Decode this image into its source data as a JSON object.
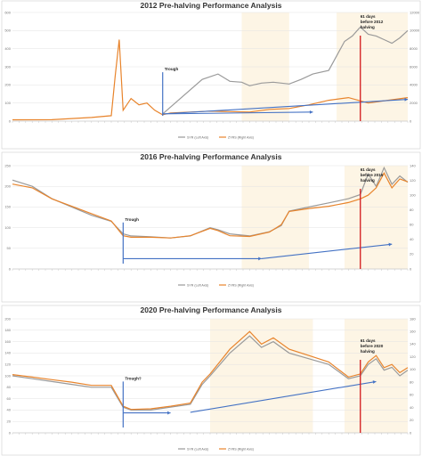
{
  "chart_data": [
    {
      "type": "line",
      "title": "2012 Pre-halving Performance Analysis",
      "ylim_left": [
        0,
        600
      ],
      "ylim_right": [
        0,
        12000
      ],
      "y_ticks_left": [
        "0",
        "100",
        "200",
        "300",
        "400",
        "500",
        "600"
      ],
      "y_ticks_right": [
        "0",
        "2000",
        "4000",
        "6000",
        "8000",
        "10000",
        "12000"
      ],
      "x_range": [
        0,
        100
      ],
      "legend": [
        "SYR (Left Axis)",
        "ZYRS (Right Axis)"
      ],
      "series": [
        {
          "name": "SYR (Left Axis)",
          "color": "#9a9a9a",
          "x": [
            38,
            48,
            52,
            55,
            58,
            60,
            63,
            66,
            70,
            73,
            76,
            80,
            82,
            84,
            86,
            88,
            90,
            92,
            94,
            96,
            98,
            100
          ],
          "values": [
            40,
            230,
            260,
            220,
            215,
            195,
            210,
            215,
            205,
            230,
            260,
            280,
            360,
            440,
            470,
            520,
            480,
            470,
            450,
            430,
            460,
            500
          ]
        },
        {
          "name": "ZYRS (Right Axis)",
          "color": "#e8842c",
          "x": [
            0,
            10,
            20,
            25,
            26,
            27,
            28,
            30,
            32,
            34,
            36,
            38,
            40,
            45,
            50,
            55,
            60,
            65,
            70,
            75,
            80,
            85,
            90,
            95,
            100
          ],
          "values": [
            150,
            160,
            400,
            600,
            5000,
            9000,
            1200,
            2500,
            1800,
            2000,
            1200,
            700,
            900,
            1000,
            1100,
            1050,
            1000,
            1300,
            1400,
            1800,
            2300,
            2600,
            2000,
            2300,
            2600
          ]
        }
      ],
      "annotations": [
        {
          "label": "Trough",
          "x": 38
        },
        {
          "label": "61 days before 2012 halving",
          "x": 88
        }
      ]
    },
    {
      "type": "line",
      "title": "2016 Pre-halving Performance Analysis",
      "ylim_left": [
        0,
        250
      ],
      "ylim_right": [
        0,
        140
      ],
      "y_ticks_left": [
        "0",
        "50",
        "100",
        "150",
        "200",
        "250"
      ],
      "y_ticks_right": [
        "0",
        "20",
        "40",
        "60",
        "80",
        "100",
        "120",
        "140"
      ],
      "x_range": [
        0,
        100
      ],
      "legend": [
        "SYR (Left Axis)",
        "ZYRS (Right Axis)"
      ],
      "series": [
        {
          "name": "SYR (Left Axis)",
          "color": "#9a9a9a",
          "x": [
            0,
            5,
            10,
            15,
            20,
            25,
            28,
            30,
            35,
            40,
            45,
            50,
            52,
            55,
            60,
            65,
            68,
            70,
            75,
            80,
            85,
            88,
            90,
            92,
            94,
            96,
            98,
            100
          ],
          "values": [
            215,
            200,
            170,
            150,
            130,
            115,
            85,
            80,
            78,
            75,
            80,
            100,
            95,
            85,
            80,
            90,
            105,
            140,
            150,
            160,
            170,
            180,
            230,
            200,
            245,
            205,
            225,
            210
          ]
        },
        {
          "name": "ZYRS (Right Axis)",
          "color": "#e8842c",
          "x": [
            0,
            5,
            10,
            15,
            20,
            25,
            28,
            30,
            35,
            40,
            45,
            50,
            52,
            55,
            60,
            65,
            68,
            70,
            75,
            80,
            85,
            88,
            90,
            92,
            94,
            96,
            98,
            100
          ],
          "values": [
            115,
            110,
            95,
            85,
            75,
            65,
            45,
            43,
            43,
            42,
            45,
            55,
            52,
            45,
            44,
            50,
            60,
            78,
            82,
            85,
            90,
            95,
            100,
            110,
            130,
            110,
            122,
            118
          ]
        }
      ],
      "annotations": [
        {
          "label": "Trough",
          "x": 28
        },
        {
          "label": "61 days before 2016 halving",
          "x": 88
        }
      ]
    },
    {
      "type": "line",
      "title": "2020 Pre-halving Performance Analysis",
      "ylim_left": [
        0,
        200
      ],
      "ylim_right": [
        0,
        180
      ],
      "y_ticks_left": [
        "0",
        "20",
        "40",
        "60",
        "80",
        "100",
        "120",
        "140",
        "160",
        "180",
        "200"
      ],
      "y_ticks_right": [
        "0",
        "20",
        "40",
        "60",
        "80",
        "100",
        "120",
        "140",
        "160",
        "180"
      ],
      "x_range": [
        0,
        100
      ],
      "legend": [
        "SYR (Left Axis)",
        "ZYRS (Right Axis)"
      ],
      "series": [
        {
          "name": "SYR (Left Axis)",
          "color": "#9a9a9a",
          "x": [
            0,
            5,
            10,
            15,
            20,
            25,
            28,
            30,
            35,
            40,
            45,
            48,
            50,
            55,
            60,
            63,
            66,
            70,
            75,
            80,
            85,
            88,
            90,
            92,
            94,
            96,
            98,
            100
          ],
          "values": [
            100,
            95,
            90,
            85,
            80,
            80,
            45,
            40,
            40,
            45,
            50,
            85,
            100,
            140,
            170,
            150,
            160,
            140,
            130,
            120,
            95,
            100,
            120,
            130,
            110,
            115,
            100,
            110
          ]
        },
        {
          "name": "ZYRS (Right Axis)",
          "color": "#e8842c",
          "x": [
            0,
            5,
            10,
            15,
            20,
            25,
            28,
            30,
            35,
            40,
            45,
            48,
            50,
            55,
            60,
            63,
            66,
            70,
            75,
            80,
            85,
            88,
            90,
            92,
            94,
            96,
            98,
            100
          ],
          "values": [
            92,
            88,
            84,
            80,
            75,
            75,
            42,
            37,
            38,
            42,
            47,
            80,
            93,
            132,
            160,
            140,
            150,
            132,
            122,
            112,
            88,
            93,
            112,
            122,
            103,
            108,
            95,
            103
          ]
        }
      ],
      "annotations": [
        {
          "label": "Trough?",
          "x": 28
        },
        {
          "label": "61 days before 2020 halving",
          "x": 88
        }
      ]
    }
  ]
}
